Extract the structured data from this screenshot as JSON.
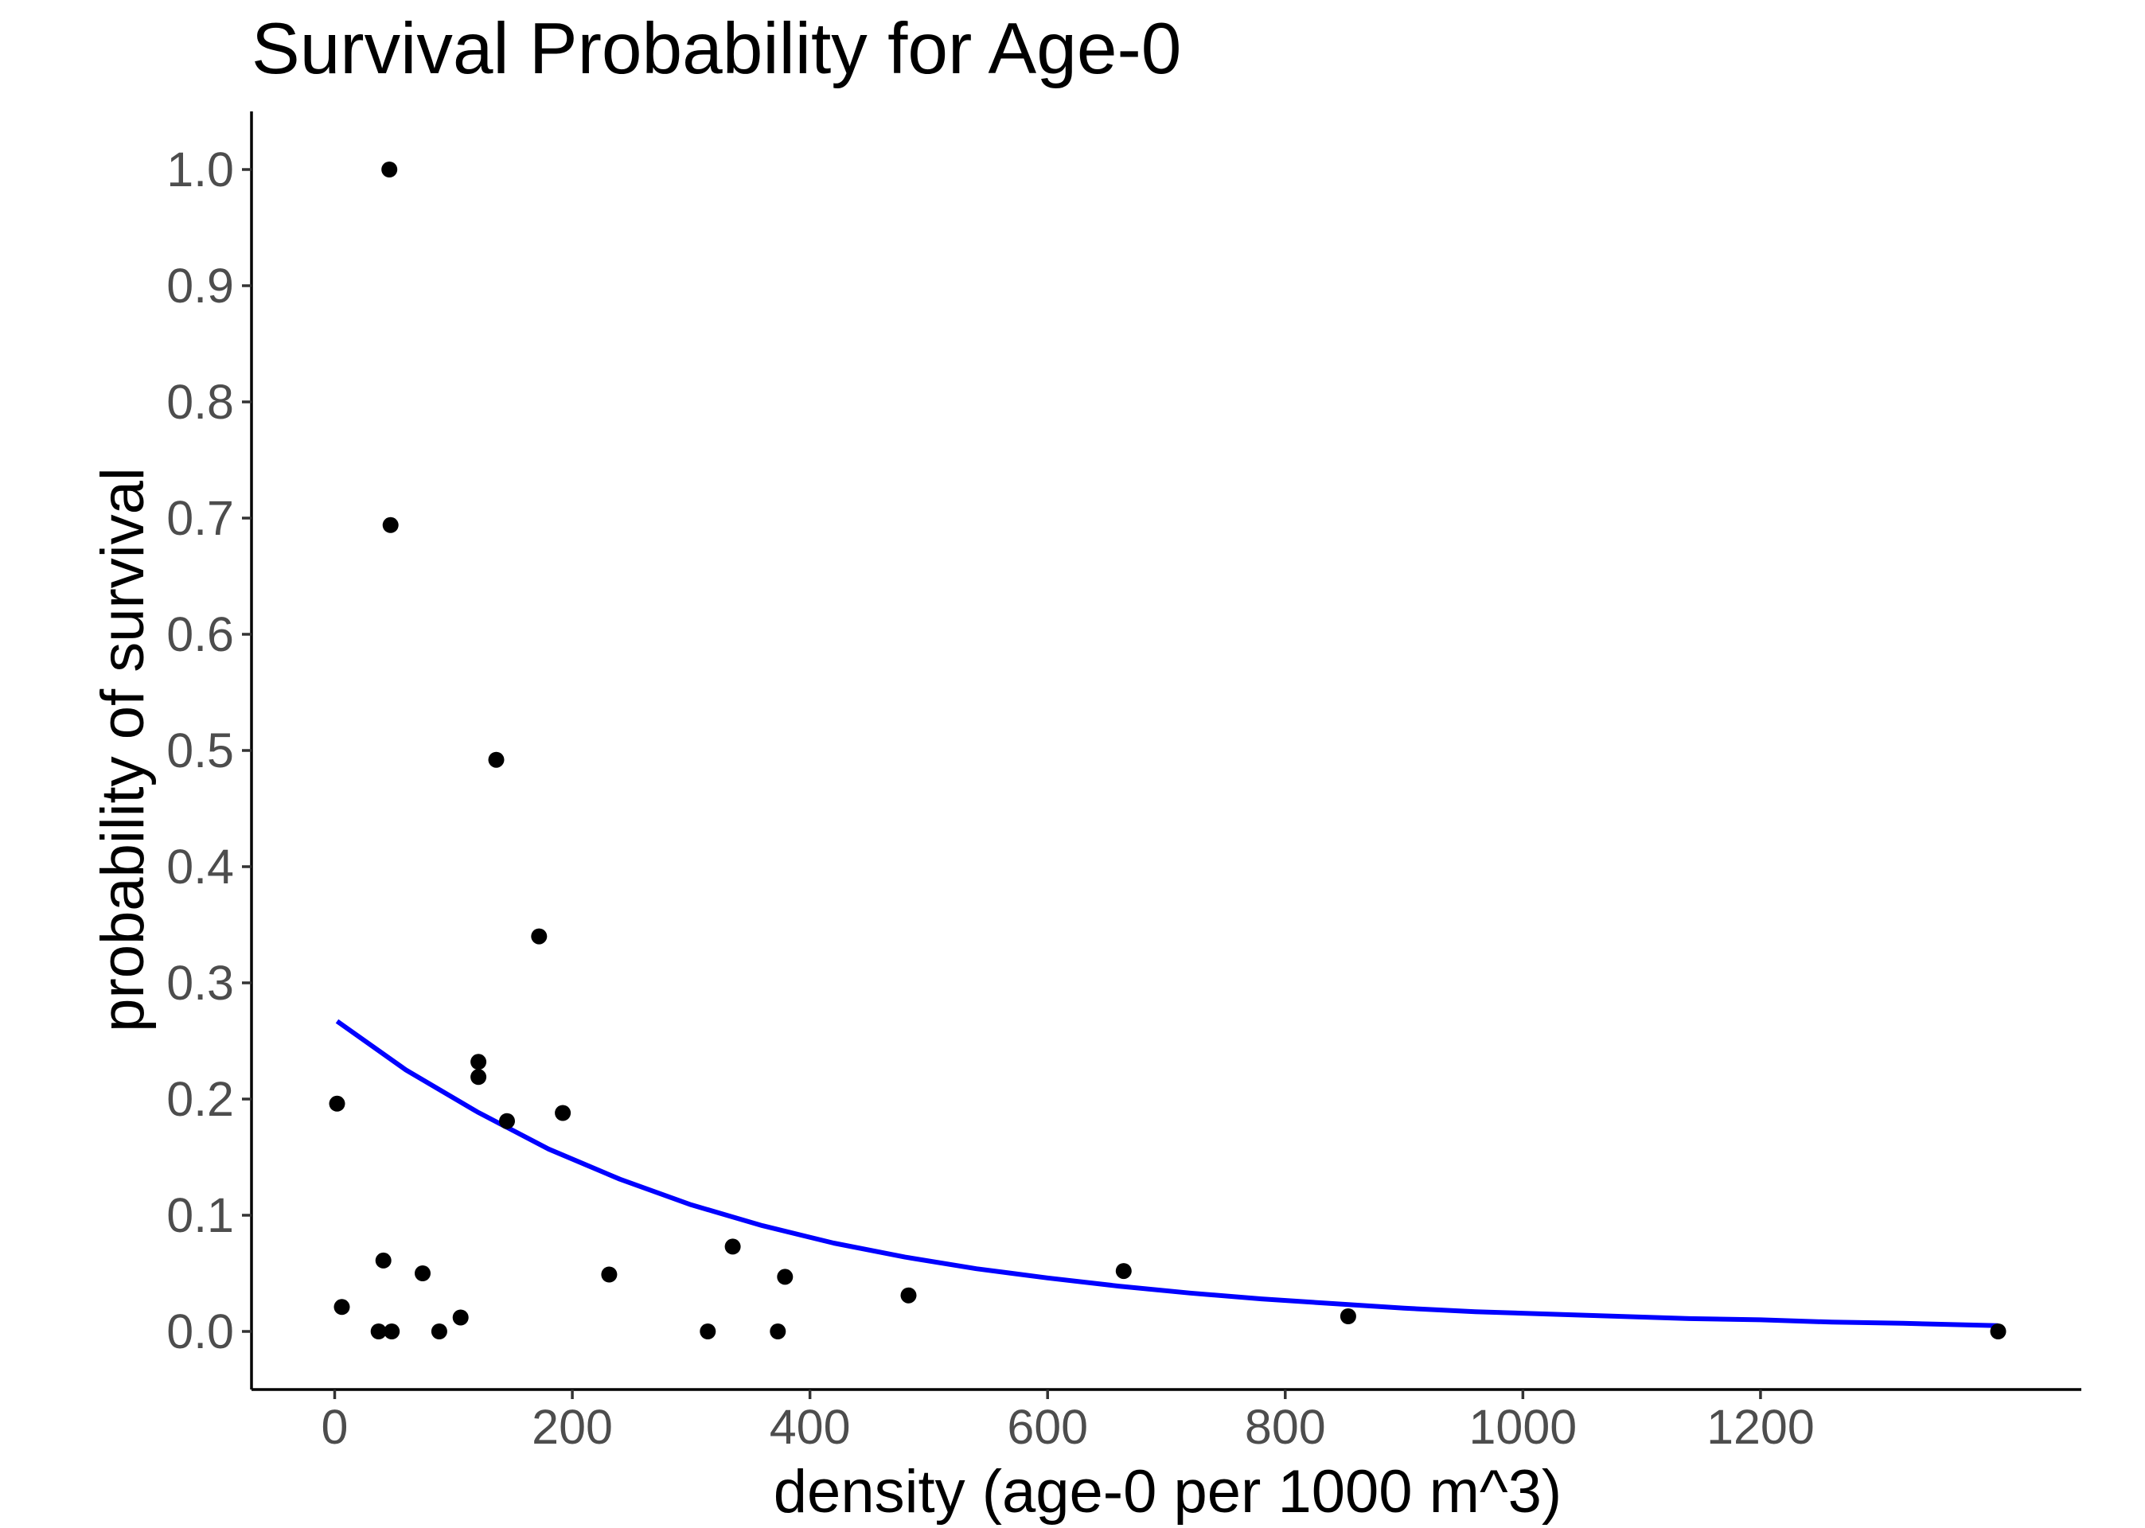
{
  "chart_data": {
    "type": "scatter",
    "title": "Survival Probability for Age-0",
    "xlabel": "density (age-0 per 1000 m^3)",
    "ylabel": "probability of survival",
    "xlim": [
      -70,
      1470
    ],
    "ylim": [
      -0.05,
      1.05
    ],
    "x_ticks": [
      0,
      200,
      400,
      600,
      800,
      1000,
      1200
    ],
    "x_tick_labels": [
      "0",
      "200",
      "400",
      "600",
      "800",
      "1000",
      "1200"
    ],
    "y_ticks": [
      0.0,
      0.1,
      0.2,
      0.3,
      0.4,
      0.5,
      0.6,
      0.7,
      0.8,
      0.9,
      1.0
    ],
    "y_tick_labels": [
      "0.0",
      "0.1",
      "0.2",
      "0.3",
      "0.4",
      "0.5",
      "0.6",
      "0.7",
      "0.8",
      "0.9",
      "1.0"
    ],
    "grid": false,
    "legend": "none",
    "points": {
      "color": "#000000",
      "x": [
        2,
        6,
        37,
        41,
        46,
        47,
        48,
        74,
        88,
        106,
        121,
        121,
        136,
        145,
        172,
        192,
        231,
        314,
        335,
        373,
        379,
        483,
        664,
        853,
        1400
      ],
      "y": [
        0.196,
        0.021,
        0.0,
        0.061,
        1.0,
        0.694,
        0.0,
        0.05,
        0.0,
        0.012,
        0.232,
        0.219,
        0.492,
        0.181,
        0.34,
        0.188,
        0.049,
        0.0,
        0.073,
        0.0,
        0.047,
        0.031,
        0.052,
        0.013,
        0.0
      ]
    },
    "fit_line": {
      "color": "#0000ff",
      "x": [
        2,
        60,
        120,
        180,
        240,
        300,
        360,
        420,
        480,
        540,
        600,
        660,
        720,
        780,
        840,
        900,
        960,
        1020,
        1080,
        1140,
        1200,
        1260,
        1320,
        1400
      ],
      "y": [
        0.267,
        0.225,
        0.189,
        0.157,
        0.131,
        0.109,
        0.091,
        0.076,
        0.064,
        0.054,
        0.046,
        0.039,
        0.033,
        0.028,
        0.024,
        0.02,
        0.017,
        0.015,
        0.013,
        0.011,
        0.01,
        0.008,
        0.007,
        0.005
      ]
    }
  }
}
